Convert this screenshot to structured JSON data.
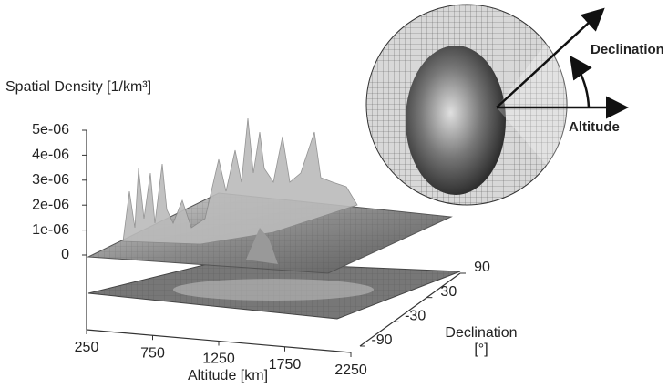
{
  "chart_data": {
    "type": "surface3d",
    "zlabel": "Spatial Density [1/km³]",
    "xlabel": "Altitude [km]",
    "ylabel": "Declination",
    "ylabel_unit": "[°]",
    "xlim": [
      250,
      2250
    ],
    "xticks": [
      250,
      750,
      1250,
      1750,
      2250
    ],
    "ylim": [
      -90,
      90
    ],
    "yticks": [
      -90,
      -30,
      30,
      90
    ],
    "zlim": [
      0,
      5e-06
    ],
    "zticks": [
      0,
      {
        "value": 1e-06,
        "label": "1e-06"
      },
      {
        "value": 2e-06,
        "label": "2e-06"
      },
      {
        "value": 3e-06,
        "label": "3e-06"
      },
      {
        "value": 4e-06,
        "label": "4e-06"
      },
      {
        "value": 5e-06,
        "label": "5e-06"
      }
    ],
    "annotations": [
      "Declination",
      "Altitude"
    ]
  }
}
